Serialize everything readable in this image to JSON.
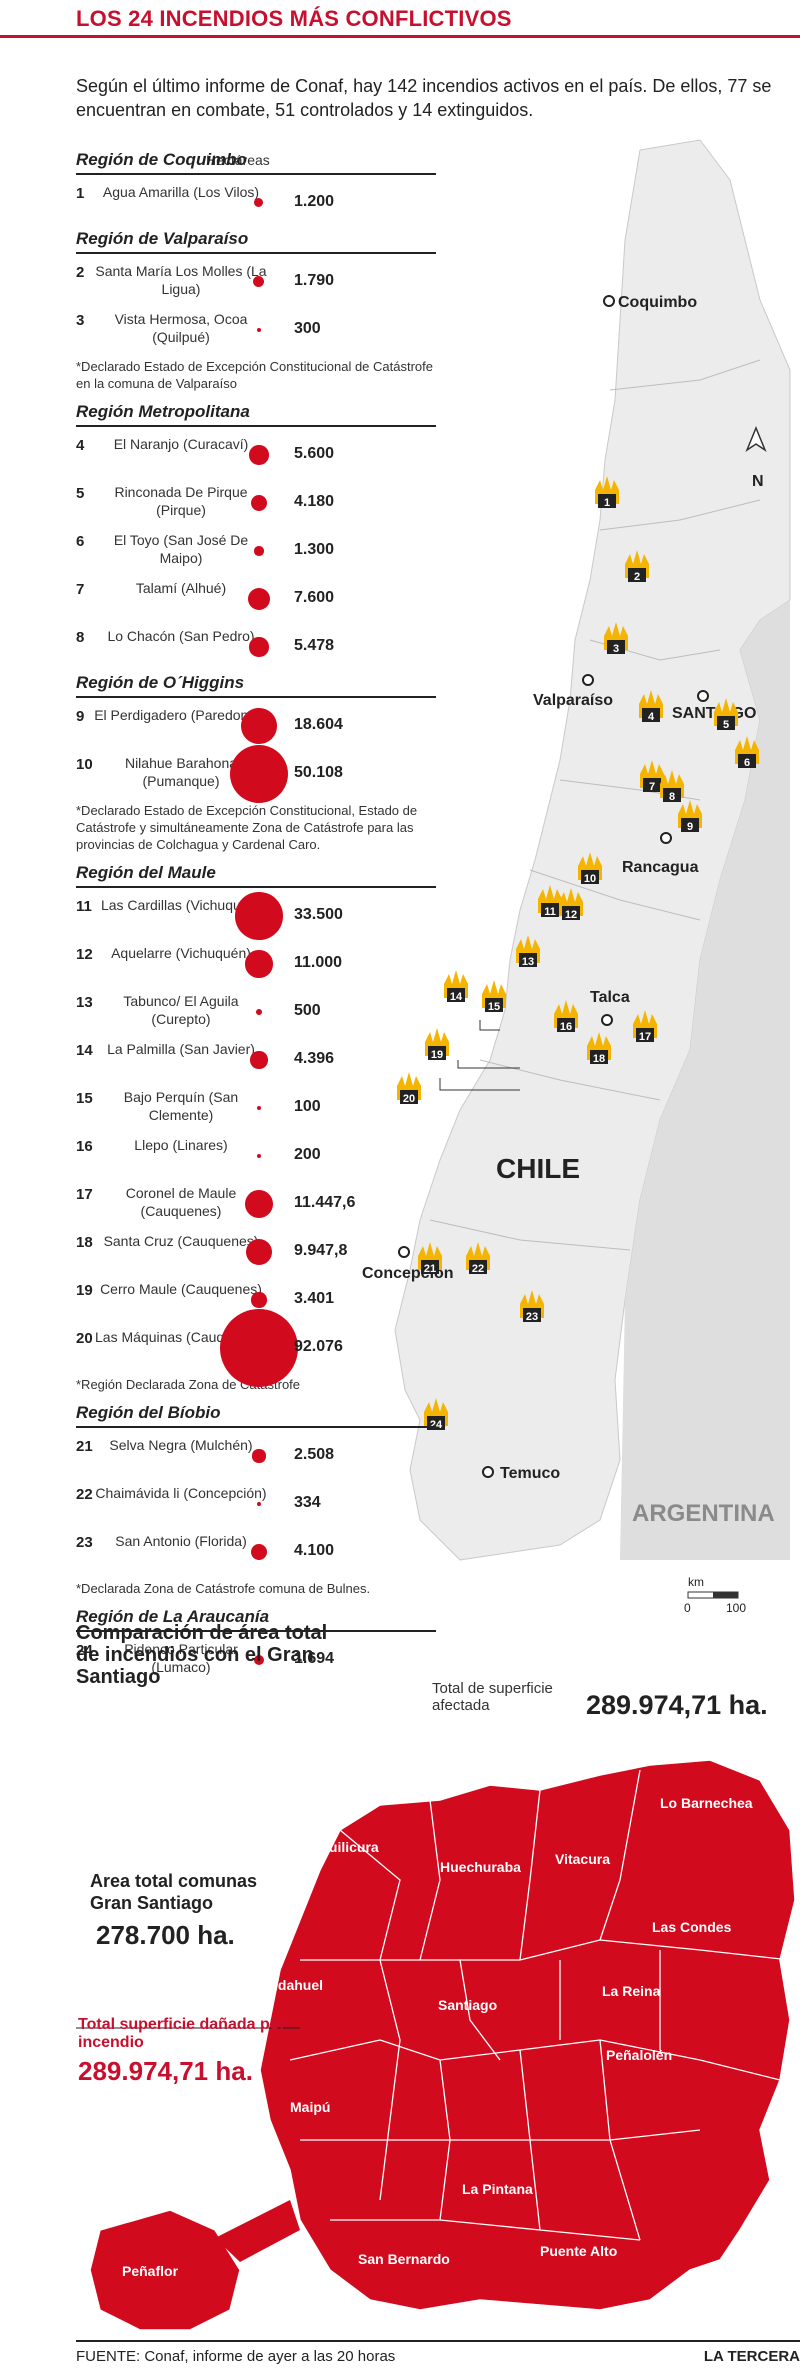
{
  "title": "LOS 24 INCENDIOS MÁS CONFLICTIVOS",
  "intro": "Según el último informe de Conaf, hay 142 incendios activos en el país. De ellos, 77 se encuentran en combate, 51 controlados y 14 extinguidos.",
  "table": {
    "hectares_label": "Hectáreas",
    "regions": [
      {
        "name": "Región de Coquimbo",
        "rows": [
          {
            "num": "1",
            "name": "Agua Amarilla (Los Vilos)",
            "value": "1.200",
            "ha": 1200
          }
        ],
        "note": ""
      },
      {
        "name": "Región de Valparaíso",
        "rows": [
          {
            "num": "2",
            "name": "Santa María Los Molles (La Ligua)",
            "value": "1.790",
            "ha": 1790
          },
          {
            "num": "3",
            "name": "Vista Hermosa, Ocoa (Quilpué)",
            "value": "300",
            "ha": 300
          }
        ],
        "note": "*Declarado Estado de Excepción Constitucional de Catástrofe en la comuna de Valparaíso"
      },
      {
        "name": "Región Metropolitana",
        "rows": [
          {
            "num": "4",
            "name": "El Naranjo (Curacaví)",
            "value": "5.600",
            "ha": 5600
          },
          {
            "num": "5",
            "name": "Rinconada De Pirque (Pirque)",
            "value": "4.180",
            "ha": 4180
          },
          {
            "num": "6",
            "name": "El Toyo (San José De Maipo)",
            "value": "1.300",
            "ha": 1300
          },
          {
            "num": "7",
            "name": "Talamí (Alhué)",
            "value": "7.600",
            "ha": 7600
          },
          {
            "num": "8",
            "name": "Lo Chacón (San Pedro)",
            "value": "5.478",
            "ha": 5478
          }
        ],
        "note": ""
      },
      {
        "name": "Región de O´Higgins",
        "rows": [
          {
            "num": "9",
            "name": "El Perdigadero (Paredones)",
            "value": "18.604",
            "ha": 18604
          },
          {
            "num": "10",
            "name": "Nilahue Barahona (Pumanque)",
            "value": "50.108",
            "ha": 50108
          }
        ],
        "note": "*Declarado Estado de Excepción Constitucional, Estado de Catástrofe y simultáneamente Zona de Catástrofe para las provincias de Colchagua y Cardenal Caro."
      },
      {
        "name": "Región del Maule",
        "rows": [
          {
            "num": "11",
            "name": "Las Cardillas (Vichuquén)",
            "value": "33.500",
            "ha": 33500
          },
          {
            "num": "12",
            "name": "Aquelarre (Vichuquén)",
            "value": "11.000",
            "ha": 11000
          },
          {
            "num": "13",
            "name": "Tabunco/ El Aguila (Curepto)",
            "value": "500",
            "ha": 500
          },
          {
            "num": "14",
            "name": "La Palmilla (San Javier)",
            "value": "4.396",
            "ha": 4396
          },
          {
            "num": "15",
            "name": "Bajo Perquín (San Clemente)",
            "value": "100",
            "ha": 100
          },
          {
            "num": "16",
            "name": "Llepo (Linares)",
            "value": "200",
            "ha": 200
          },
          {
            "num": "17",
            "name": "Coronel de Maule (Cauquenes)",
            "value": "11.447,6",
            "ha": 11447.6
          },
          {
            "num": "18",
            "name": "Santa Cruz (Cauquenes)",
            "value": "9.947,8",
            "ha": 9947.8
          },
          {
            "num": "19",
            "name": "Cerro Maule (Cauquenes)",
            "value": "3.401",
            "ha": 3401
          },
          {
            "num": "20",
            "name": "Las Máquinas (Cauquenes)",
            "value": "92.076",
            "ha": 92076
          }
        ],
        "note": "*Región Declarada Zona de Catástrofe"
      },
      {
        "name": "Región del Bíobio",
        "rows": [
          {
            "num": "21",
            "name": "Selva Negra (Mulchén)",
            "value": "2.508",
            "ha": 2508
          },
          {
            "num": "22",
            "name": "Chaimávida li (Concepción)",
            "value": "334",
            "ha": 334
          },
          {
            "num": "23",
            "name": "San Antonio (Florida)",
            "value": "4.100",
            "ha": 4100
          }
        ],
        "note": "*Declarada Zona de Catástrofe comuna de Bulnes."
      },
      {
        "name": "Región de La Araucanía",
        "rows": [
          {
            "num": "24",
            "name": "Pidenco Particular (Lumaco)",
            "value": "1.694",
            "ha": 1694
          }
        ],
        "note": ""
      }
    ]
  },
  "total": {
    "label": "Total de superficie afectada",
    "value": "289.974,71 ha."
  },
  "map": {
    "cities": [
      "Coquimbo",
      "Valparaíso",
      "SANTIAGO",
      "Rancagua",
      "Talca",
      "Concepción",
      "Temuco"
    ],
    "country": "CHILE",
    "neighbor": "ARGENTINA",
    "north": "N",
    "scale_unit": "km",
    "scale_min": "0",
    "scale_max": "100",
    "fire_color": "#f4b400",
    "land_color": "#ececec"
  },
  "comparison": {
    "title": "Comparación de área total de incendios con el Gran Santiago",
    "area_label": "Area total comunas Gran Santiago",
    "area_value": "278.700 ha.",
    "damaged_label": "Total superficie dañada por incendio",
    "damaged_value": "289.974,71 ha.",
    "communes": [
      "Quilicura",
      "Huechuraba",
      "Vitacura",
      "Lo Barnechea",
      "Las Condes",
      "Pudahuel",
      "Santiago",
      "La Reina",
      "Peñalolén",
      "Maipú",
      "La Pintana",
      "Puente Alto",
      "San Bernardo",
      "Peñaflor"
    ],
    "red": "#d10a1e"
  },
  "footer": {
    "source": "FUENTE: Conaf, informe de ayer a las 20 horas",
    "brand": "LA TERCERA"
  }
}
